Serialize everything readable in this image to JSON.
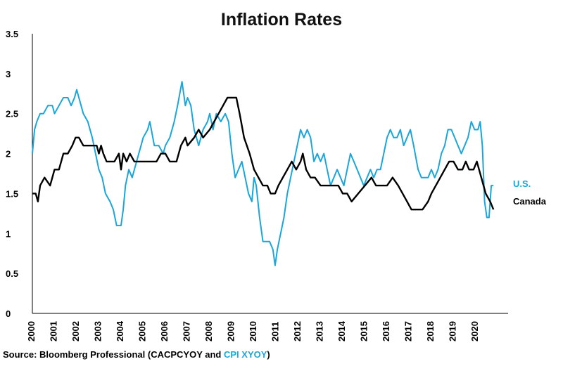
{
  "chart_data": {
    "type": "line",
    "title": "Inflation Rates",
    "ylim": [
      0,
      3.5
    ],
    "yticks": [
      "0",
      "0.5",
      "1",
      "1.5",
      "2",
      "2.5",
      "3",
      "3.5"
    ],
    "xticks": [
      "2000",
      "2001",
      "2002",
      "2003",
      "2004",
      "2005",
      "2006",
      "2007",
      "2008",
      "2009",
      "2010",
      "2011",
      "2012",
      "2013",
      "2014",
      "2015",
      "2016",
      "2017",
      "2018",
      "2019",
      "2020"
    ],
    "grid": false,
    "series": [
      {
        "name": "U.S.",
        "color": "#1aa6d9",
        "points": [
          [
            2000.0,
            2.0
          ],
          [
            2000.1,
            2.3
          ],
          [
            2000.2,
            2.4
          ],
          [
            2000.35,
            2.5
          ],
          [
            2000.5,
            2.5
          ],
          [
            2000.7,
            2.6
          ],
          [
            2000.9,
            2.6
          ],
          [
            2001.0,
            2.5
          ],
          [
            2001.2,
            2.6
          ],
          [
            2001.4,
            2.7
          ],
          [
            2001.6,
            2.7
          ],
          [
            2001.75,
            2.6
          ],
          [
            2001.9,
            2.7
          ],
          [
            2002.0,
            2.8
          ],
          [
            2002.1,
            2.7
          ],
          [
            2002.3,
            2.5
          ],
          [
            2002.5,
            2.4
          ],
          [
            2002.7,
            2.2
          ],
          [
            2002.85,
            2.0
          ],
          [
            2003.0,
            1.8
          ],
          [
            2003.15,
            1.7
          ],
          [
            2003.3,
            1.5
          ],
          [
            2003.5,
            1.4
          ],
          [
            2003.65,
            1.3
          ],
          [
            2003.8,
            1.1
          ],
          [
            2004.0,
            1.1
          ],
          [
            2004.1,
            1.3
          ],
          [
            2004.2,
            1.6
          ],
          [
            2004.35,
            1.8
          ],
          [
            2004.5,
            1.7
          ],
          [
            2004.7,
            1.9
          ],
          [
            2004.9,
            2.1
          ],
          [
            2005.0,
            2.2
          ],
          [
            2005.2,
            2.3
          ],
          [
            2005.3,
            2.4
          ],
          [
            2005.5,
            2.1
          ],
          [
            2005.7,
            2.1
          ],
          [
            2005.9,
            2.0
          ],
          [
            2006.0,
            2.1
          ],
          [
            2006.2,
            2.2
          ],
          [
            2006.4,
            2.4
          ],
          [
            2006.55,
            2.6
          ],
          [
            2006.75,
            2.9
          ],
          [
            2006.9,
            2.6
          ],
          [
            2007.0,
            2.7
          ],
          [
            2007.15,
            2.6
          ],
          [
            2007.3,
            2.3
          ],
          [
            2007.5,
            2.1
          ],
          [
            2007.7,
            2.3
          ],
          [
            2007.9,
            2.4
          ],
          [
            2008.0,
            2.5
          ],
          [
            2008.15,
            2.3
          ],
          [
            2008.3,
            2.5
          ],
          [
            2008.5,
            2.4
          ],
          [
            2008.7,
            2.5
          ],
          [
            2008.85,
            2.4
          ],
          [
            2009.0,
            2.0
          ],
          [
            2009.15,
            1.7
          ],
          [
            2009.3,
            1.8
          ],
          [
            2009.45,
            1.9
          ],
          [
            2009.6,
            1.7
          ],
          [
            2009.75,
            1.5
          ],
          [
            2009.9,
            1.4
          ],
          [
            2010.0,
            1.7
          ],
          [
            2010.1,
            1.6
          ],
          [
            2010.25,
            1.2
          ],
          [
            2010.4,
            0.9
          ],
          [
            2010.55,
            0.9
          ],
          [
            2010.7,
            0.9
          ],
          [
            2010.85,
            0.8
          ],
          [
            2010.95,
            0.6
          ],
          [
            2011.05,
            0.8
          ],
          [
            2011.2,
            1.0
          ],
          [
            2011.35,
            1.2
          ],
          [
            2011.5,
            1.5
          ],
          [
            2011.65,
            1.7
          ],
          [
            2011.8,
            1.9
          ],
          [
            2011.95,
            2.1
          ],
          [
            2012.1,
            2.3
          ],
          [
            2012.25,
            2.2
          ],
          [
            2012.4,
            2.3
          ],
          [
            2012.55,
            2.2
          ],
          [
            2012.7,
            1.9
          ],
          [
            2012.85,
            2.0
          ],
          [
            2013.0,
            1.9
          ],
          [
            2013.15,
            2.0
          ],
          [
            2013.3,
            1.8
          ],
          [
            2013.45,
            1.6
          ],
          [
            2013.6,
            1.7
          ],
          [
            2013.75,
            1.8
          ],
          [
            2013.9,
            1.7
          ],
          [
            2014.05,
            1.6
          ],
          [
            2014.2,
            1.8
          ],
          [
            2014.35,
            2.0
          ],
          [
            2014.5,
            1.9
          ],
          [
            2014.65,
            1.8
          ],
          [
            2014.8,
            1.7
          ],
          [
            2014.95,
            1.6
          ],
          [
            2015.1,
            1.7
          ],
          [
            2015.25,
            1.8
          ],
          [
            2015.4,
            1.7
          ],
          [
            2015.55,
            1.8
          ],
          [
            2015.7,
            1.8
          ],
          [
            2015.85,
            2.0
          ],
          [
            2016.0,
            2.2
          ],
          [
            2016.15,
            2.3
          ],
          [
            2016.3,
            2.2
          ],
          [
            2016.45,
            2.2
          ],
          [
            2016.6,
            2.3
          ],
          [
            2016.75,
            2.1
          ],
          [
            2016.9,
            2.2
          ],
          [
            2017.05,
            2.3
          ],
          [
            2017.2,
            2.1
          ],
          [
            2017.4,
            1.8
          ],
          [
            2017.55,
            1.7
          ],
          [
            2017.7,
            1.7
          ],
          [
            2017.85,
            1.7
          ],
          [
            2018.0,
            1.8
          ],
          [
            2018.15,
            1.7
          ],
          [
            2018.3,
            1.8
          ],
          [
            2018.45,
            2.0
          ],
          [
            2018.6,
            2.1
          ],
          [
            2018.75,
            2.3
          ],
          [
            2018.9,
            2.3
          ],
          [
            2019.05,
            2.2
          ],
          [
            2019.2,
            2.1
          ],
          [
            2019.35,
            2.0
          ],
          [
            2019.5,
            2.1
          ],
          [
            2019.65,
            2.2
          ],
          [
            2019.8,
            2.4
          ],
          [
            2019.95,
            2.3
          ],
          [
            2020.1,
            2.3
          ],
          [
            2020.2,
            2.4
          ],
          [
            2020.3,
            2.1
          ],
          [
            2020.4,
            1.4
          ],
          [
            2020.5,
            1.2
          ],
          [
            2020.6,
            1.2
          ],
          [
            2020.7,
            1.6
          ],
          [
            2020.8,
            1.6
          ]
        ]
      },
      {
        "name": "Canada",
        "color": "#000000",
        "points": [
          [
            2000.0,
            1.5
          ],
          [
            2000.15,
            1.5
          ],
          [
            2000.25,
            1.4
          ],
          [
            2000.35,
            1.6
          ],
          [
            2000.55,
            1.7
          ],
          [
            2000.8,
            1.6
          ],
          [
            2001.0,
            1.8
          ],
          [
            2001.2,
            1.8
          ],
          [
            2001.4,
            2.0
          ],
          [
            2001.6,
            2.0
          ],
          [
            2001.8,
            2.1
          ],
          [
            2001.95,
            2.2
          ],
          [
            2002.1,
            2.2
          ],
          [
            2002.3,
            2.1
          ],
          [
            2002.6,
            2.1
          ],
          [
            2002.9,
            2.1
          ],
          [
            2003.0,
            2.0
          ],
          [
            2003.1,
            2.1
          ],
          [
            2003.2,
            2.0
          ],
          [
            2003.35,
            1.9
          ],
          [
            2003.7,
            1.9
          ],
          [
            2003.9,
            2.0
          ],
          [
            2004.0,
            1.8
          ],
          [
            2004.1,
            2.0
          ],
          [
            2004.25,
            1.9
          ],
          [
            2004.4,
            2.0
          ],
          [
            2004.6,
            1.9
          ],
          [
            2005.0,
            1.9
          ],
          [
            2005.4,
            1.9
          ],
          [
            2005.6,
            1.9
          ],
          [
            2005.8,
            2.0
          ],
          [
            2006.0,
            2.0
          ],
          [
            2006.2,
            1.9
          ],
          [
            2006.5,
            1.9
          ],
          [
            2006.7,
            2.1
          ],
          [
            2006.9,
            2.2
          ],
          [
            2007.0,
            2.1
          ],
          [
            2007.3,
            2.2
          ],
          [
            2007.5,
            2.3
          ],
          [
            2007.7,
            2.2
          ],
          [
            2008.0,
            2.3
          ],
          [
            2008.2,
            2.4
          ],
          [
            2008.4,
            2.5
          ],
          [
            2008.6,
            2.6
          ],
          [
            2008.8,
            2.7
          ],
          [
            2009.2,
            2.7
          ],
          [
            2009.35,
            2.5
          ],
          [
            2009.55,
            2.2
          ],
          [
            2009.8,
            2.0
          ],
          [
            2010.0,
            1.8
          ],
          [
            2010.2,
            1.7
          ],
          [
            2010.4,
            1.6
          ],
          [
            2010.6,
            1.6
          ],
          [
            2010.75,
            1.5
          ],
          [
            2010.95,
            1.5
          ],
          [
            2011.1,
            1.6
          ],
          [
            2011.3,
            1.7
          ],
          [
            2011.5,
            1.8
          ],
          [
            2011.7,
            1.9
          ],
          [
            2011.9,
            1.8
          ],
          [
            2012.1,
            1.9
          ],
          [
            2012.2,
            2.0
          ],
          [
            2012.35,
            1.8
          ],
          [
            2012.55,
            1.7
          ],
          [
            2012.75,
            1.7
          ],
          [
            2013.0,
            1.6
          ],
          [
            2013.5,
            1.6
          ],
          [
            2013.8,
            1.6
          ],
          [
            2014.0,
            1.5
          ],
          [
            2014.2,
            1.5
          ],
          [
            2014.4,
            1.4
          ],
          [
            2014.7,
            1.5
          ],
          [
            2015.0,
            1.6
          ],
          [
            2015.3,
            1.7
          ],
          [
            2015.5,
            1.6
          ],
          [
            2015.8,
            1.6
          ],
          [
            2016.0,
            1.6
          ],
          [
            2016.25,
            1.7
          ],
          [
            2016.5,
            1.6
          ],
          [
            2016.7,
            1.5
          ],
          [
            2016.9,
            1.4
          ],
          [
            2017.1,
            1.3
          ],
          [
            2017.3,
            1.3
          ],
          [
            2017.6,
            1.3
          ],
          [
            2017.85,
            1.4
          ],
          [
            2018.0,
            1.5
          ],
          [
            2018.2,
            1.6
          ],
          [
            2018.4,
            1.7
          ],
          [
            2018.6,
            1.8
          ],
          [
            2018.8,
            1.9
          ],
          [
            2019.0,
            1.9
          ],
          [
            2019.2,
            1.8
          ],
          [
            2019.4,
            1.8
          ],
          [
            2019.55,
            1.9
          ],
          [
            2019.7,
            1.8
          ],
          [
            2019.9,
            1.8
          ],
          [
            2020.05,
            1.9
          ],
          [
            2020.25,
            1.7
          ],
          [
            2020.45,
            1.5
          ],
          [
            2020.65,
            1.4
          ],
          [
            2020.8,
            1.3
          ]
        ]
      }
    ],
    "legend_placement": "right-end",
    "source": {
      "prefix": "Source: Bloomberg Professional  (CACPCYOY and ",
      "highlight": "CPI XYOY",
      "suffix": ")"
    }
  }
}
